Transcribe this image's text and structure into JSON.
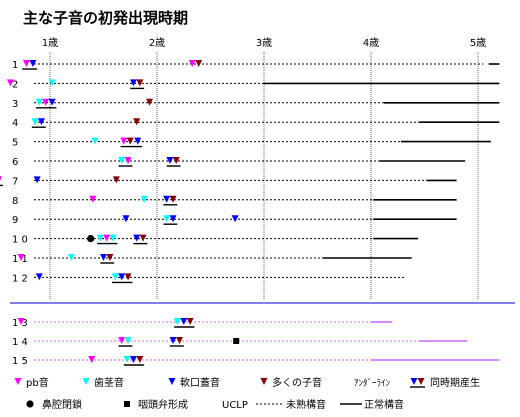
{
  "chart_data": {
    "type": "timeline",
    "title": "主な子音の初発出現時期",
    "x_ticks": [
      "1歳",
      "2歳",
      "3歳",
      "4歳",
      "5歳"
    ],
    "x_tick_values": [
      1,
      2,
      3,
      4,
      5
    ],
    "xlim": [
      0.5,
      5.3
    ],
    "group1_rows": [
      "1",
      "2",
      "3",
      "4",
      "5",
      "6",
      "7",
      "8",
      "9",
      "10",
      "11",
      "12"
    ],
    "group2_rows": [
      "13",
      "14",
      "15"
    ],
    "group1_row_labels": [
      "1",
      "2",
      "3",
      "4",
      "5",
      "6",
      "7",
      "8",
      "9",
      "1 0",
      "1 1",
      "1 2"
    ],
    "group2_row_labels": [
      "1 3",
      "1 4",
      "1 5"
    ],
    "marker_types": {
      "pb": {
        "shape": "tri-down",
        "color": "#ff00ff"
      },
      "alveolar": {
        "shape": "tri-down",
        "color": "#00ffff"
      },
      "velar": {
        "shape": "tri-down",
        "color": "#0000ff"
      },
      "many": {
        "shape": "tri-down",
        "color": "#800000"
      },
      "nasal_closure": {
        "shape": "circle",
        "color": "#000000"
      },
      "pharyngeal_flap": {
        "shape": "square",
        "color": "#000000"
      }
    },
    "cases": [
      {
        "row": "1",
        "dotted_end": 5.05,
        "solid": [
          [
            5.1,
            5.2
          ]
        ],
        "markers": [
          [
            "pb",
            0.78
          ],
          [
            "velar",
            0.84
          ],
          [
            "pb",
            2.33
          ],
          [
            "many",
            2.39
          ]
        ],
        "underlines": [
          [
            0.74,
            0.88
          ]
        ]
      },
      {
        "row": "2",
        "dotted_end": 3.0,
        "solid": [
          [
            3.0,
            5.2
          ]
        ],
        "markers": [
          [
            "pb",
            0.63
          ],
          [
            "alveolar",
            1.02
          ],
          [
            "velar",
            1.78
          ],
          [
            "many",
            1.84
          ]
        ],
        "underlines": [
          [
            1.75,
            1.88
          ]
        ]
      },
      {
        "row": "3",
        "dotted_end": 4.12,
        "solid": [
          [
            4.12,
            5.2
          ]
        ],
        "markers": [
          [
            "alveolar",
            0.9
          ],
          [
            "pb",
            0.96
          ],
          [
            "velar",
            1.02
          ],
          [
            "many",
            1.93
          ]
        ],
        "underlines": [
          [
            0.87,
            1.06
          ]
        ]
      },
      {
        "row": "4",
        "dotted_end": 4.45,
        "solid": [
          [
            4.45,
            5.2
          ]
        ],
        "markers": [
          [
            "alveolar",
            0.86
          ],
          [
            "velar",
            0.92
          ],
          [
            "many",
            1.81
          ]
        ],
        "underlines": [
          [
            0.83,
            0.96
          ]
        ]
      },
      {
        "row": "5",
        "dotted_end": 4.28,
        "solid": [
          [
            4.28,
            5.12
          ]
        ],
        "markers": [
          [
            "alveolar",
            1.42
          ],
          [
            "pb",
            1.69
          ],
          [
            "many",
            1.75
          ],
          [
            "velar",
            1.82
          ]
        ],
        "underlines": [
          [
            1.66,
            1.86
          ]
        ]
      },
      {
        "row": "6",
        "dotted_end": 4.08,
        "solid": [
          [
            4.08,
            4.88
          ]
        ],
        "markers": [
          [
            "alveolar",
            1.67
          ],
          [
            "pb",
            1.73
          ],
          [
            "velar",
            2.12
          ],
          [
            "many",
            2.18
          ]
        ],
        "underlines": [
          [
            1.64,
            1.77
          ],
          [
            2.09,
            2.22
          ]
        ]
      },
      {
        "row": "7",
        "dotted_end": 4.52,
        "solid": [
          [
            4.52,
            4.8
          ]
        ],
        "markers": [
          [
            "alveolar",
            0.46
          ],
          [
            "pb",
            0.52
          ],
          [
            "velar",
            0.88
          ],
          [
            "many",
            1.62
          ]
        ],
        "underlines": [
          [
            0.43,
            0.56
          ]
        ]
      },
      {
        "row": "8",
        "dotted_end": 4.02,
        "solid": [
          [
            4.02,
            4.8
          ]
        ],
        "markers": [
          [
            "pb",
            1.4
          ],
          [
            "alveolar",
            1.88
          ],
          [
            "velar",
            2.09
          ],
          [
            "many",
            2.15
          ]
        ],
        "underlines": [
          [
            2.06,
            2.19
          ]
        ]
      },
      {
        "row": "9",
        "dotted_end": 4.02,
        "solid": [
          [
            4.02,
            4.8
          ]
        ],
        "markers": [
          [
            "velar",
            1.71
          ],
          [
            "alveolar",
            2.09
          ],
          [
            "velar",
            2.15
          ],
          [
            "velar",
            2.73
          ]
        ],
        "underlines": [
          [
            2.06,
            2.19
          ]
        ]
      },
      {
        "row": "10",
        "dotted_end": 4.02,
        "solid": [
          [
            4.02,
            4.44
          ]
        ],
        "markers": [
          [
            "nasal_closure",
            1.38
          ],
          [
            "alveolar",
            1.47
          ],
          [
            "pb",
            1.53
          ],
          [
            "alveolar",
            1.59
          ],
          [
            "velar",
            1.81
          ],
          [
            "many",
            1.87
          ]
        ],
        "underlines": [
          [
            1.44,
            1.63
          ],
          [
            1.78,
            1.91
          ]
        ]
      },
      {
        "row": "11",
        "dotted_end": 3.55,
        "solid": [
          [
            3.55,
            4.38
          ]
        ],
        "markers": [
          [
            "pb",
            0.73
          ],
          [
            "alveolar",
            1.2
          ],
          [
            "velar",
            1.5
          ],
          [
            "many",
            1.56
          ]
        ],
        "underlines": [
          [
            1.47,
            1.6
          ]
        ]
      },
      {
        "row": "12",
        "dotted_end": 4.32,
        "solid": [],
        "markers": [
          [
            "velar",
            0.9
          ],
          [
            "alveolar",
            1.61
          ],
          [
            "velar",
            1.67
          ],
          [
            "many",
            1.73
          ]
        ],
        "underlines": [
          [
            1.58,
            1.77
          ]
        ]
      },
      {
        "row": "13",
        "dotted_end": 4.0,
        "solid": [
          [
            4.0,
            4.2
          ]
        ],
        "markers": [
          [
            "pb",
            0.73
          ],
          [
            "alveolar",
            2.19
          ],
          [
            "velar",
            2.25
          ],
          [
            "many",
            2.31
          ]
        ],
        "underlines": [
          [
            2.16,
            2.35
          ]
        ]
      },
      {
        "row": "14",
        "dotted_end": 4.45,
        "solid": [
          [
            4.45,
            4.9
          ]
        ],
        "markers": [
          [
            "pb",
            1.67
          ],
          [
            "alveolar",
            1.73
          ],
          [
            "velar",
            2.15
          ],
          [
            "many",
            2.21
          ],
          [
            "pharyngeal_flap",
            2.74
          ]
        ],
        "underlines": [
          [
            1.64,
            1.77
          ],
          [
            2.12,
            2.25
          ]
        ]
      },
      {
        "row": "15",
        "dotted_end": 4.0,
        "solid": [
          [
            4.0,
            5.2
          ]
        ],
        "markers": [
          [
            "pb",
            1.39
          ],
          [
            "alveolar",
            1.72
          ],
          [
            "velar",
            1.78
          ],
          [
            "many",
            1.84
          ]
        ],
        "underlines": [
          [
            1.69,
            1.88
          ]
        ]
      }
    ],
    "legend_row1": [
      {
        "key": "pb",
        "label": "pb音"
      },
      {
        "key": "alveolar",
        "label": "歯茎音"
      },
      {
        "key": "velar",
        "label": "軟口蓋音"
      },
      {
        "key": "many",
        "label": "多くの子音"
      }
    ],
    "legend_row2": [
      {
        "key": "nasal_closure",
        "label": "鼻腔閉鎖"
      },
      {
        "key": "pharyngeal_flap",
        "label": "咽頭弁形成"
      }
    ],
    "legend_underline_label": "ｱﾝﾀﾞｰﾗｲﾝ",
    "legend_simultaneous_label": "同時期産生",
    "legend_uclp_label": "UCLP",
    "legend_immature_label": "未熟構音",
    "legend_normal_label": "正常構音",
    "group1_line_color": "#000000",
    "group2_line_color": "#cc66ff",
    "separator_color": "#0000cc"
  }
}
